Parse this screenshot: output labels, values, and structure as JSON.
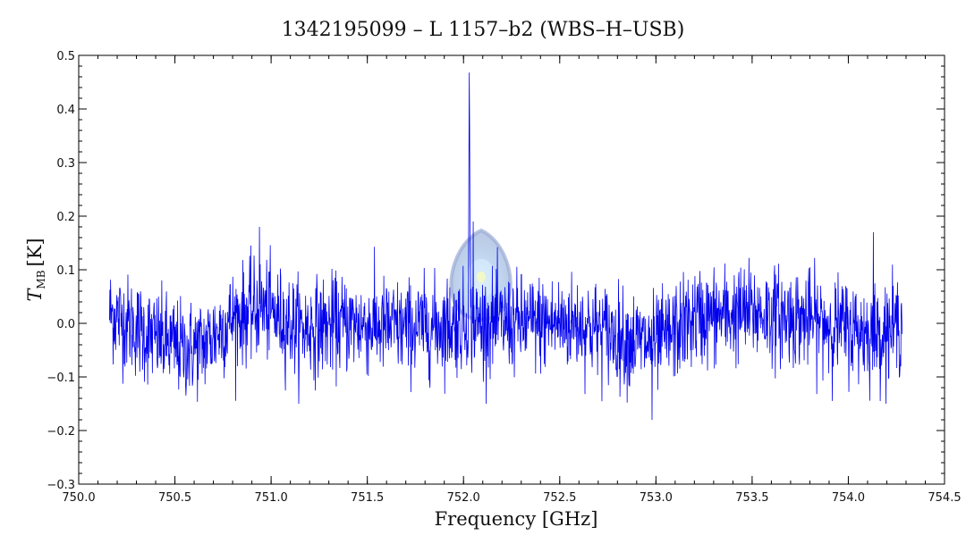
{
  "chart_data": {
    "type": "line",
    "title": "1342195099 – L 1157–b2 (WBS–H–USB)",
    "xlabel": "Frequency [GHz]",
    "ylabel": {
      "main": "T",
      "subscript": "MB",
      "unit": "[K]"
    },
    "xlim": [
      750.0,
      754.5
    ],
    "ylim": [
      -0.3,
      0.5
    ],
    "x_ticks": [
      "750.0",
      "750.5",
      "751.0",
      "751.5",
      "752.0",
      "752.5",
      "753.0",
      "753.5",
      "754.0",
      "754.5"
    ],
    "y_ticks": [
      "−0.3",
      "−0.2",
      "−0.1",
      "0.0",
      "0.1",
      "0.2",
      "0.3",
      "0.4",
      "0.5"
    ],
    "grid": false,
    "series": [
      {
        "color": "#0000ee",
        "x_start": 750.16,
        "x_end": 754.28,
        "n_points": 2200,
        "noise_rms": 0.045,
        "baseline": [
          [
            750.16,
            0.02
          ],
          [
            750.35,
            -0.02
          ],
          [
            750.55,
            -0.05
          ],
          [
            750.65,
            -0.04
          ],
          [
            750.8,
            0.01
          ],
          [
            750.95,
            0.03
          ],
          [
            751.15,
            -0.01
          ],
          [
            751.4,
            0.0
          ],
          [
            751.7,
            -0.01
          ],
          [
            752.0,
            0.0
          ],
          [
            752.3,
            0.0
          ],
          [
            752.6,
            0.0
          ],
          [
            752.85,
            -0.03
          ],
          [
            753.0,
            -0.04
          ],
          [
            753.2,
            0.01
          ],
          [
            753.5,
            0.02
          ],
          [
            753.75,
            0.01
          ],
          [
            754.0,
            -0.01
          ],
          [
            754.15,
            -0.02
          ],
          [
            754.28,
            0.0
          ]
        ],
        "peak": {
          "x": 752.03,
          "y": 0.43
        },
        "extrema": [
          {
            "x": 750.94,
            "y": 0.18
          },
          {
            "x": 752.05,
            "y": 0.19
          },
          {
            "x": 752.98,
            "y": -0.18
          },
          {
            "x": 754.13,
            "y": 0.17
          }
        ]
      }
    ]
  },
  "watermark": {
    "name": "herschel-logo-watermark",
    "colors": [
      "#6f8fc9",
      "#a9d2f2",
      "#e9f4c9"
    ]
  }
}
